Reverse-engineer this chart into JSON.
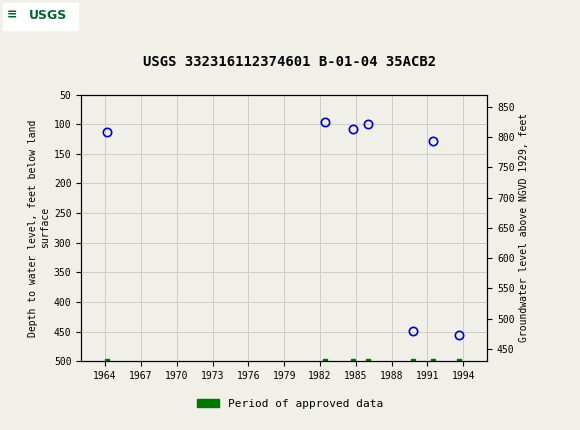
{
  "title": "USGS 332316112374601 B-01-04 35ACB2",
  "header_color": "#006633",
  "xlabel": "",
  "ylabel_left": "Depth to water level, feet below land\nsurface",
  "ylabel_right": "Groundwater level above NGVD 1929, feet",
  "xlim": [
    1962.0,
    1996.0
  ],
  "ylim_left": [
    500,
    50
  ],
  "ylim_right": [
    430,
    870
  ],
  "xticks": [
    1964,
    1967,
    1970,
    1973,
    1976,
    1979,
    1982,
    1985,
    1988,
    1991,
    1994
  ],
  "yticks_left": [
    50,
    100,
    150,
    200,
    250,
    300,
    350,
    400,
    450,
    500
  ],
  "yticks_right": [
    850,
    800,
    750,
    700,
    650,
    600,
    550,
    500,
    450
  ],
  "data_points_x": [
    1964.2,
    1982.4,
    1984.8,
    1986.0,
    1989.8,
    1991.5,
    1993.6
  ],
  "data_points_y": [
    113,
    97,
    108,
    100,
    449,
    128,
    455
  ],
  "approved_data_x": [
    1964.2,
    1982.4,
    1984.8,
    1986.0,
    1989.8,
    1991.5,
    1993.6
  ],
  "marker_color": "#0000cc",
  "marker_facecolor": "none",
  "marker_size": 6,
  "marker_edge_width": 1.2,
  "grid_color": "#cccccc",
  "background_color": "#f0f0e8",
  "plot_bg_color": "#f0f0e8",
  "legend_label": "Period of approved data",
  "legend_color": "#007700",
  "tick_fontsize": 7,
  "label_fontsize": 7,
  "title_fontsize": 10
}
